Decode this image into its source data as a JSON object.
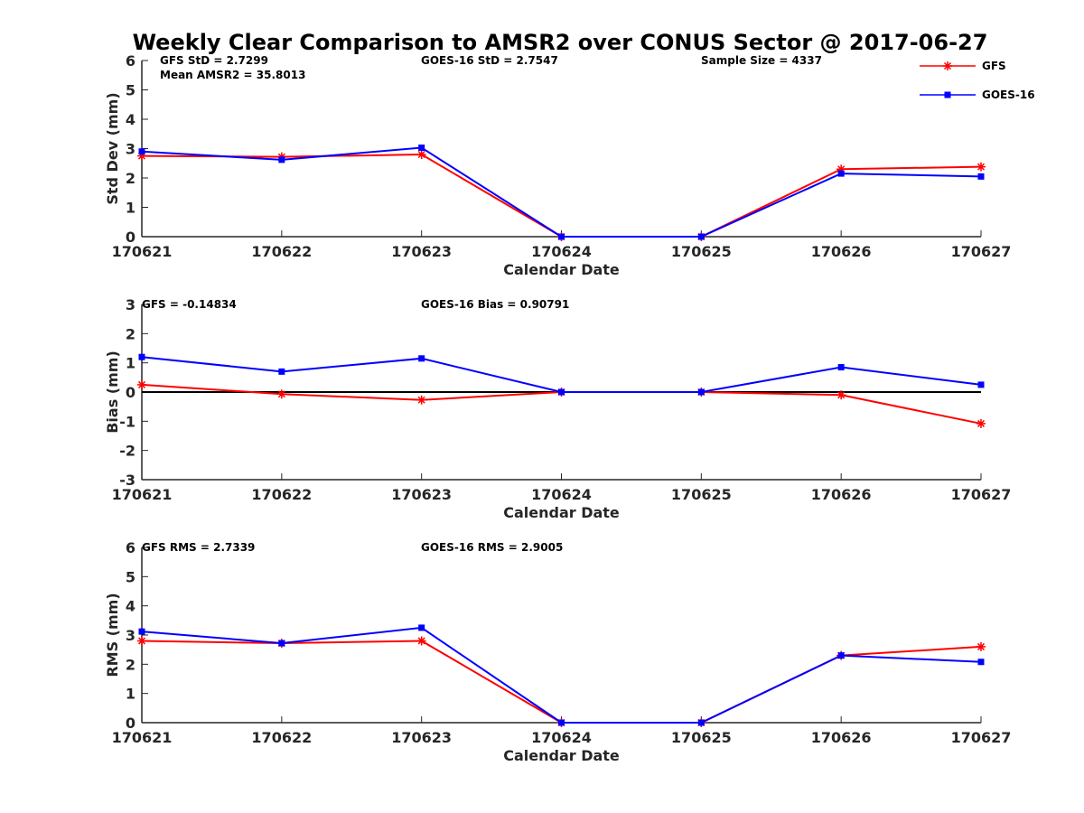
{
  "title": "Weekly Clear Comparison to AMSR2 over CONUS Sector @ 2017-06-27",
  "colors": {
    "gfs": "#ff0000",
    "goes": "#0000ff",
    "axis": "#262626",
    "zero_line": "#000000"
  },
  "legend": {
    "placement": "top-right",
    "entries": [
      "GFS",
      "GOES-16"
    ]
  },
  "chart_data": [
    {
      "type": "line",
      "xlabel": "Calendar Date",
      "ylabel": "Std Dev (mm)",
      "categories": [
        "170621",
        "170622",
        "170623",
        "170624",
        "170625",
        "170626",
        "170627"
      ],
      "ylim": [
        0,
        6
      ],
      "yticks": [
        0,
        1,
        2,
        3,
        4,
        5,
        6
      ],
      "series": [
        {
          "name": "GFS",
          "marker": "asterisk",
          "values": [
            2.75,
            2.72,
            2.8,
            0,
            0,
            2.3,
            2.38
          ]
        },
        {
          "name": "GOES-16",
          "marker": "square",
          "values": [
            2.9,
            2.62,
            3.03,
            0,
            0,
            2.15,
            2.05
          ]
        }
      ],
      "annotations": [
        "GFS StD = 2.7299",
        "Mean AMSR2 = 35.8013",
        "GOES-16 StD = 2.7547",
        "Sample Size = 4337"
      ],
      "grid": false
    },
    {
      "type": "line",
      "xlabel": "Calendar Date",
      "ylabel": "Bias (mm)",
      "categories": [
        "170621",
        "170622",
        "170623",
        "170624",
        "170625",
        "170626",
        "170627"
      ],
      "ylim": [
        -3,
        3
      ],
      "yticks": [
        -3,
        -2,
        -1,
        0,
        1,
        2,
        3
      ],
      "reference_line": 0,
      "series": [
        {
          "name": "GFS",
          "marker": "asterisk",
          "values": [
            0.25,
            -0.07,
            -0.27,
            0,
            0,
            -0.1,
            -1.08
          ]
        },
        {
          "name": "GOES-16",
          "marker": "square",
          "values": [
            1.2,
            0.7,
            1.15,
            0,
            0,
            0.85,
            0.25
          ]
        }
      ],
      "annotations": [
        "GFS = -0.14834",
        "GOES-16 Bias  = 0.90791"
      ],
      "grid": false
    },
    {
      "type": "line",
      "xlabel": "Calendar Date",
      "ylabel": "RMS (mm)",
      "categories": [
        "170621",
        "170622",
        "170623",
        "170624",
        "170625",
        "170626",
        "170627"
      ],
      "ylim": [
        0,
        6
      ],
      "yticks": [
        0,
        1,
        2,
        3,
        4,
        5,
        6
      ],
      "series": [
        {
          "name": "GFS",
          "marker": "asterisk",
          "values": [
            2.8,
            2.72,
            2.8,
            0,
            0,
            2.3,
            2.6
          ]
        },
        {
          "name": "GOES-16",
          "marker": "square",
          "values": [
            3.12,
            2.72,
            3.25,
            0,
            0,
            2.3,
            2.08
          ]
        }
      ],
      "annotations": [
        "GFS RMS = 2.7339",
        "GOES-16 RMS = 2.9005"
      ],
      "grid": false
    }
  ]
}
